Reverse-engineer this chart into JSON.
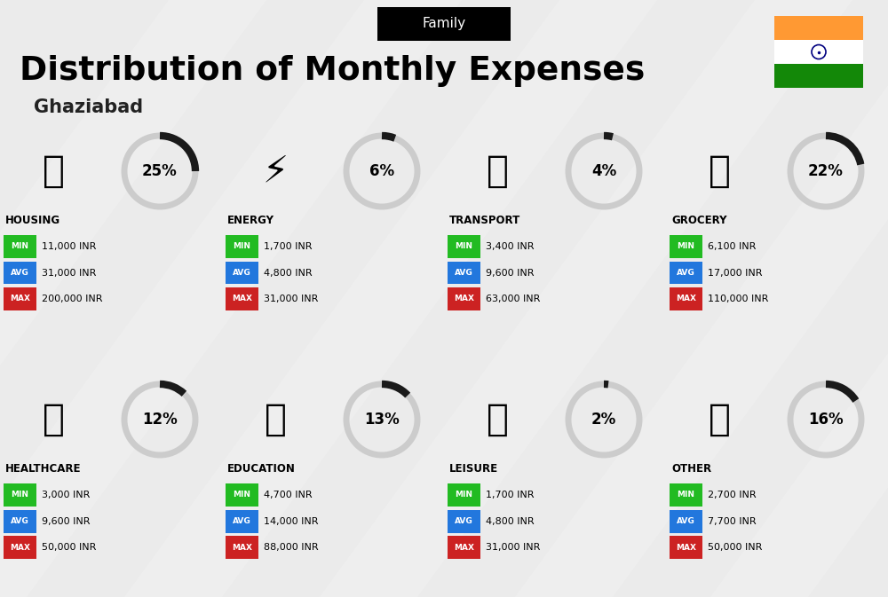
{
  "title": "Distribution of Monthly Expenses",
  "subtitle": "Ghaziabad",
  "header_label": "Family",
  "bg_color": "#ebebeb",
  "categories": [
    {
      "name": "HOUSING",
      "pct": 25,
      "min": "11,000 INR",
      "avg": "31,000 INR",
      "max": "200,000 INR",
      "row": 0,
      "col": 0
    },
    {
      "name": "ENERGY",
      "pct": 6,
      "min": "1,700 INR",
      "avg": "4,800 INR",
      "max": "31,000 INR",
      "row": 0,
      "col": 1
    },
    {
      "name": "TRANSPORT",
      "pct": 4,
      "min": "3,400 INR",
      "avg": "9,600 INR",
      "max": "63,000 INR",
      "row": 0,
      "col": 2
    },
    {
      "name": "GROCERY",
      "pct": 22,
      "min": "6,100 INR",
      "avg": "17,000 INR",
      "max": "110,000 INR",
      "row": 0,
      "col": 3
    },
    {
      "name": "HEALTHCARE",
      "pct": 12,
      "min": "3,000 INR",
      "avg": "9,600 INR",
      "max": "50,000 INR",
      "row": 1,
      "col": 0
    },
    {
      "name": "EDUCATION",
      "pct": 13,
      "min": "4,700 INR",
      "avg": "14,000 INR",
      "max": "88,000 INR",
      "row": 1,
      "col": 1
    },
    {
      "name": "LEISURE",
      "pct": 2,
      "min": "1,700 INR",
      "avg": "4,800 INR",
      "max": "31,000 INR",
      "row": 1,
      "col": 2
    },
    {
      "name": "OTHER",
      "pct": 16,
      "min": "2,700 INR",
      "avg": "7,700 INR",
      "max": "50,000 INR",
      "row": 1,
      "col": 3
    }
  ],
  "min_color": "#22bb22",
  "avg_color": "#2277dd",
  "max_color": "#cc2222",
  "arc_color_dark": "#1a1a1a",
  "arc_color_light": "#cccccc",
  "india_orange": "#FF9933",
  "india_white": "#FFFFFF",
  "india_green": "#138808",
  "india_navy": "#000080"
}
